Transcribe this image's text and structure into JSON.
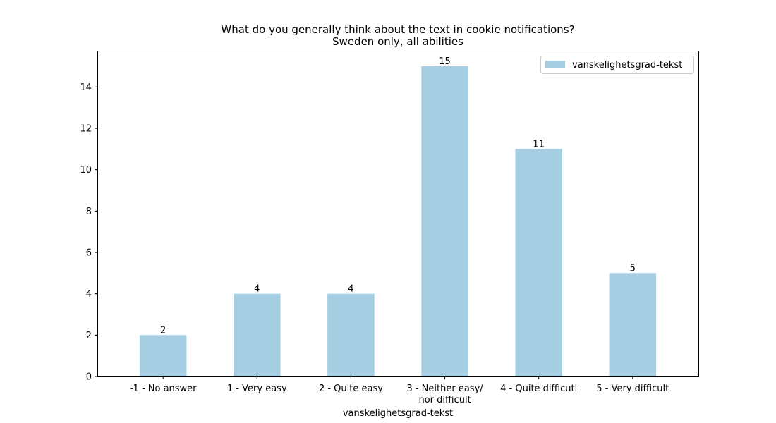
{
  "chart_data": {
    "type": "bar",
    "title": "What do you generally think about the text in cookie notifications?",
    "subtitle": "Sweden only, all abilities",
    "xlabel": "vanskelighetsgrad-tekst",
    "ylabel": "",
    "categories": [
      [
        "-1 - No answer"
      ],
      [
        "1 - Very easy"
      ],
      [
        "2 - Quite easy"
      ],
      [
        "3 - Neither easy/",
        "nor difficult"
      ],
      [
        "4 - Quite difficutl"
      ],
      [
        "5 - Very difficult"
      ]
    ],
    "series": [
      {
        "name": "vanskelighetsgrad-tekst",
        "values": [
          2,
          4,
          4,
          15,
          11,
          5
        ],
        "color": "#a6cee3"
      }
    ],
    "ylim": [
      0,
      15.75
    ],
    "yticks": [
      0,
      2,
      4,
      6,
      8,
      10,
      12,
      14
    ],
    "grid": false,
    "legend_position": "top-right"
  }
}
